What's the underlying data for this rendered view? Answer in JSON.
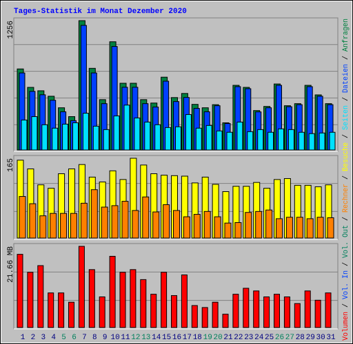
{
  "chart_data": [
    {
      "type": "bar",
      "title": "Tages-Statistik im Monat Dezember 2020",
      "legend_separator": " / ",
      "ylim": [
        0,
        1256
      ],
      "yticks": [
        1256
      ],
      "series": [
        {
          "name": "Anfragen",
          "color": "#008040",
          "values": [
            787,
            608,
            575,
            522,
            410,
            324,
            1256,
            793,
            489,
            1051,
            648,
            648,
            489,
            456,
            707,
            509,
            549,
            443,
            410,
            440,
            264,
            628,
            608,
            383,
            423,
            641,
            430,
            450,
            628,
            535,
            450
          ]
        },
        {
          "name": "Dateien",
          "color": "#0040ff",
          "values": [
            748,
            569,
            536,
            483,
            371,
            285,
            1210,
            748,
            450,
            1005,
            609,
            609,
            450,
            417,
            668,
            470,
            510,
            404,
            371,
            430,
            257,
            615,
            595,
            370,
            410,
            628,
            420,
            440,
            615,
            522,
            440
          ]
        },
        {
          "name": "Seiten",
          "color": "#00e0ff",
          "values": [
            291,
            324,
            245,
            212,
            251,
            264,
            357,
            231,
            198,
            331,
            436,
            311,
            271,
            245,
            218,
            225,
            344,
            212,
            238,
            185,
            172,
            271,
            178,
            198,
            172,
            205,
            198,
            172,
            159,
            165,
            172
          ]
        }
      ]
    },
    {
      "type": "bar",
      "ylim": [
        0,
        165
      ],
      "yticks": [
        165
      ],
      "series": [
        {
          "name": "Besuche",
          "color": "#ffff00",
          "values": [
            161,
            143,
            110,
            103,
            133,
            143,
            152,
            126,
            116,
            139,
            121,
            165,
            151,
            133,
            130,
            129,
            128,
            114,
            126,
            111,
            96,
            107,
            107,
            115,
            103,
            121,
            123,
            109,
            109,
            106,
            110
          ]
        },
        {
          "name": "Rechner",
          "color": "#ff8000",
          "values": [
            86,
            71,
            46,
            51,
            51,
            51,
            72,
            100,
            64,
            67,
            76,
            57,
            85,
            54,
            69,
            57,
            44,
            49,
            55,
            44,
            31,
            32,
            53,
            55,
            58,
            40,
            43,
            43,
            40,
            43,
            42
          ]
        }
      ]
    },
    {
      "type": "bar",
      "ylim": [
        0,
        21.66
      ],
      "yticks": [
        {
          "value": 21.66,
          "label": "21.66 MB"
        }
      ],
      "categories": [
        "1",
        "2",
        "3",
        "4",
        "5",
        "6",
        "7",
        "8",
        "9",
        "10",
        "11",
        "12",
        "13",
        "14",
        "15",
        "16",
        "17",
        "18",
        "19",
        "20",
        "21",
        "22",
        "23",
        "24",
        "25",
        "26",
        "27",
        "28",
        "29",
        "30",
        "31"
      ],
      "weekend_days": [
        "5",
        "6",
        "12",
        "13",
        "19",
        "20",
        "26",
        "27"
      ],
      "weekend_color": "#00805c",
      "weekday_color": "#000080",
      "extra_legend": [
        {
          "name": "Vol. In",
          "color": "#0040ff"
        },
        {
          "name": "Vol. Out",
          "color": "#00805c"
        }
      ],
      "series": [
        {
          "name": "Volumen",
          "color": "#ff0000",
          "values": [
            19.53,
            14.74,
            16.51,
            9.23,
            9.23,
            6.75,
            21.66,
            15.45,
            8.17,
            19.0,
            14.74,
            15.45,
            12.78,
            8.88,
            14.74,
            8.52,
            14.03,
            5.86,
            5.33,
            6.75,
            3.55,
            8.88,
            10.47,
            9.76,
            8.17,
            8.88,
            8.17,
            6.39,
            9.76,
            7.28,
            9.23
          ]
        }
      ]
    }
  ]
}
